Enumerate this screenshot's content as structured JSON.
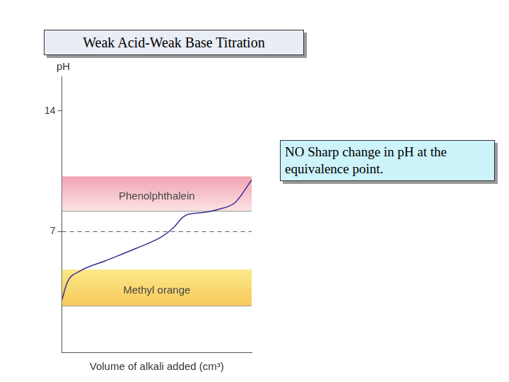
{
  "chart_data": {
    "type": "line",
    "title": "Weak Acid-Weak Base Titration",
    "x_label": "Volume of alkali added (cm³)",
    "y_label": "pH",
    "x": [
      0,
      1.5,
      4.7,
      11.4,
      19.8,
      26.3,
      29.5,
      31.7,
      33.2,
      37.1,
      41.4,
      45.7,
      50
    ],
    "values": [
      3.05,
      4.1,
      4.7,
      5.3,
      6.05,
      6.7,
      7.25,
      7.8,
      8.0,
      8.1,
      8.3,
      8.7,
      10.0
    ],
    "color": "#3c2f8f",
    "xlim": [
      0,
      50
    ],
    "ylim": [
      0,
      16
    ],
    "yticks": [
      7,
      14
    ],
    "grid": false,
    "tick_labels": "y",
    "bands": [
      {
        "label": "Phenolphthalein",
        "range": [
          8.2,
          10.2
        ],
        "color": "#f2a3b3"
      },
      {
        "label": "Methyl orange",
        "range": [
          2.7,
          4.8
        ],
        "color": "#f8c95a"
      }
    ],
    "hlines": [
      {
        "value": 7,
        "line_style": "dashed",
        "color": "#555555"
      }
    ],
    "annotations": [
      "NO Sharp change in pH at the equivalence point."
    ]
  }
}
